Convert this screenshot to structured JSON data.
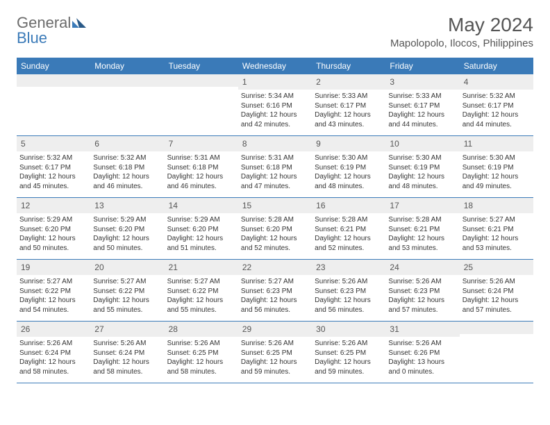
{
  "logo": {
    "general": "General",
    "blue": "Blue"
  },
  "title": "May 2024",
  "location": "Mapolopolo, Ilocos, Philippines",
  "dayHeaders": [
    "Sunday",
    "Monday",
    "Tuesday",
    "Wednesday",
    "Thursday",
    "Friday",
    "Saturday"
  ],
  "colors": {
    "headerBg": "#3a7ab8",
    "headerText": "#ffffff",
    "dayNumBg": "#eeeeee",
    "text": "#333333",
    "titleText": "#555555"
  },
  "weeks": [
    [
      {
        "n": "",
        "sr": "",
        "ss": "",
        "dl": ""
      },
      {
        "n": "",
        "sr": "",
        "ss": "",
        "dl": ""
      },
      {
        "n": "",
        "sr": "",
        "ss": "",
        "dl": ""
      },
      {
        "n": "1",
        "sr": "5:34 AM",
        "ss": "6:16 PM",
        "dl": "12 hours and 42 minutes."
      },
      {
        "n": "2",
        "sr": "5:33 AM",
        "ss": "6:17 PM",
        "dl": "12 hours and 43 minutes."
      },
      {
        "n": "3",
        "sr": "5:33 AM",
        "ss": "6:17 PM",
        "dl": "12 hours and 44 minutes."
      },
      {
        "n": "4",
        "sr": "5:32 AM",
        "ss": "6:17 PM",
        "dl": "12 hours and 44 minutes."
      }
    ],
    [
      {
        "n": "5",
        "sr": "5:32 AM",
        "ss": "6:17 PM",
        "dl": "12 hours and 45 minutes."
      },
      {
        "n": "6",
        "sr": "5:32 AM",
        "ss": "6:18 PM",
        "dl": "12 hours and 46 minutes."
      },
      {
        "n": "7",
        "sr": "5:31 AM",
        "ss": "6:18 PM",
        "dl": "12 hours and 46 minutes."
      },
      {
        "n": "8",
        "sr": "5:31 AM",
        "ss": "6:18 PM",
        "dl": "12 hours and 47 minutes."
      },
      {
        "n": "9",
        "sr": "5:30 AM",
        "ss": "6:19 PM",
        "dl": "12 hours and 48 minutes."
      },
      {
        "n": "10",
        "sr": "5:30 AM",
        "ss": "6:19 PM",
        "dl": "12 hours and 48 minutes."
      },
      {
        "n": "11",
        "sr": "5:30 AM",
        "ss": "6:19 PM",
        "dl": "12 hours and 49 minutes."
      }
    ],
    [
      {
        "n": "12",
        "sr": "5:29 AM",
        "ss": "6:20 PM",
        "dl": "12 hours and 50 minutes."
      },
      {
        "n": "13",
        "sr": "5:29 AM",
        "ss": "6:20 PM",
        "dl": "12 hours and 50 minutes."
      },
      {
        "n": "14",
        "sr": "5:29 AM",
        "ss": "6:20 PM",
        "dl": "12 hours and 51 minutes."
      },
      {
        "n": "15",
        "sr": "5:28 AM",
        "ss": "6:20 PM",
        "dl": "12 hours and 52 minutes."
      },
      {
        "n": "16",
        "sr": "5:28 AM",
        "ss": "6:21 PM",
        "dl": "12 hours and 52 minutes."
      },
      {
        "n": "17",
        "sr": "5:28 AM",
        "ss": "6:21 PM",
        "dl": "12 hours and 53 minutes."
      },
      {
        "n": "18",
        "sr": "5:27 AM",
        "ss": "6:21 PM",
        "dl": "12 hours and 53 minutes."
      }
    ],
    [
      {
        "n": "19",
        "sr": "5:27 AM",
        "ss": "6:22 PM",
        "dl": "12 hours and 54 minutes."
      },
      {
        "n": "20",
        "sr": "5:27 AM",
        "ss": "6:22 PM",
        "dl": "12 hours and 55 minutes."
      },
      {
        "n": "21",
        "sr": "5:27 AM",
        "ss": "6:22 PM",
        "dl": "12 hours and 55 minutes."
      },
      {
        "n": "22",
        "sr": "5:27 AM",
        "ss": "6:23 PM",
        "dl": "12 hours and 56 minutes."
      },
      {
        "n": "23",
        "sr": "5:26 AM",
        "ss": "6:23 PM",
        "dl": "12 hours and 56 minutes."
      },
      {
        "n": "24",
        "sr": "5:26 AM",
        "ss": "6:23 PM",
        "dl": "12 hours and 57 minutes."
      },
      {
        "n": "25",
        "sr": "5:26 AM",
        "ss": "6:24 PM",
        "dl": "12 hours and 57 minutes."
      }
    ],
    [
      {
        "n": "26",
        "sr": "5:26 AM",
        "ss": "6:24 PM",
        "dl": "12 hours and 58 minutes."
      },
      {
        "n": "27",
        "sr": "5:26 AM",
        "ss": "6:24 PM",
        "dl": "12 hours and 58 minutes."
      },
      {
        "n": "28",
        "sr": "5:26 AM",
        "ss": "6:25 PM",
        "dl": "12 hours and 58 minutes."
      },
      {
        "n": "29",
        "sr": "5:26 AM",
        "ss": "6:25 PM",
        "dl": "12 hours and 59 minutes."
      },
      {
        "n": "30",
        "sr": "5:26 AM",
        "ss": "6:25 PM",
        "dl": "12 hours and 59 minutes."
      },
      {
        "n": "31",
        "sr": "5:26 AM",
        "ss": "6:26 PM",
        "dl": "13 hours and 0 minutes."
      },
      {
        "n": "",
        "sr": "",
        "ss": "",
        "dl": ""
      }
    ]
  ],
  "labels": {
    "sunrise": "Sunrise:",
    "sunset": "Sunset:",
    "daylight": "Daylight:"
  }
}
